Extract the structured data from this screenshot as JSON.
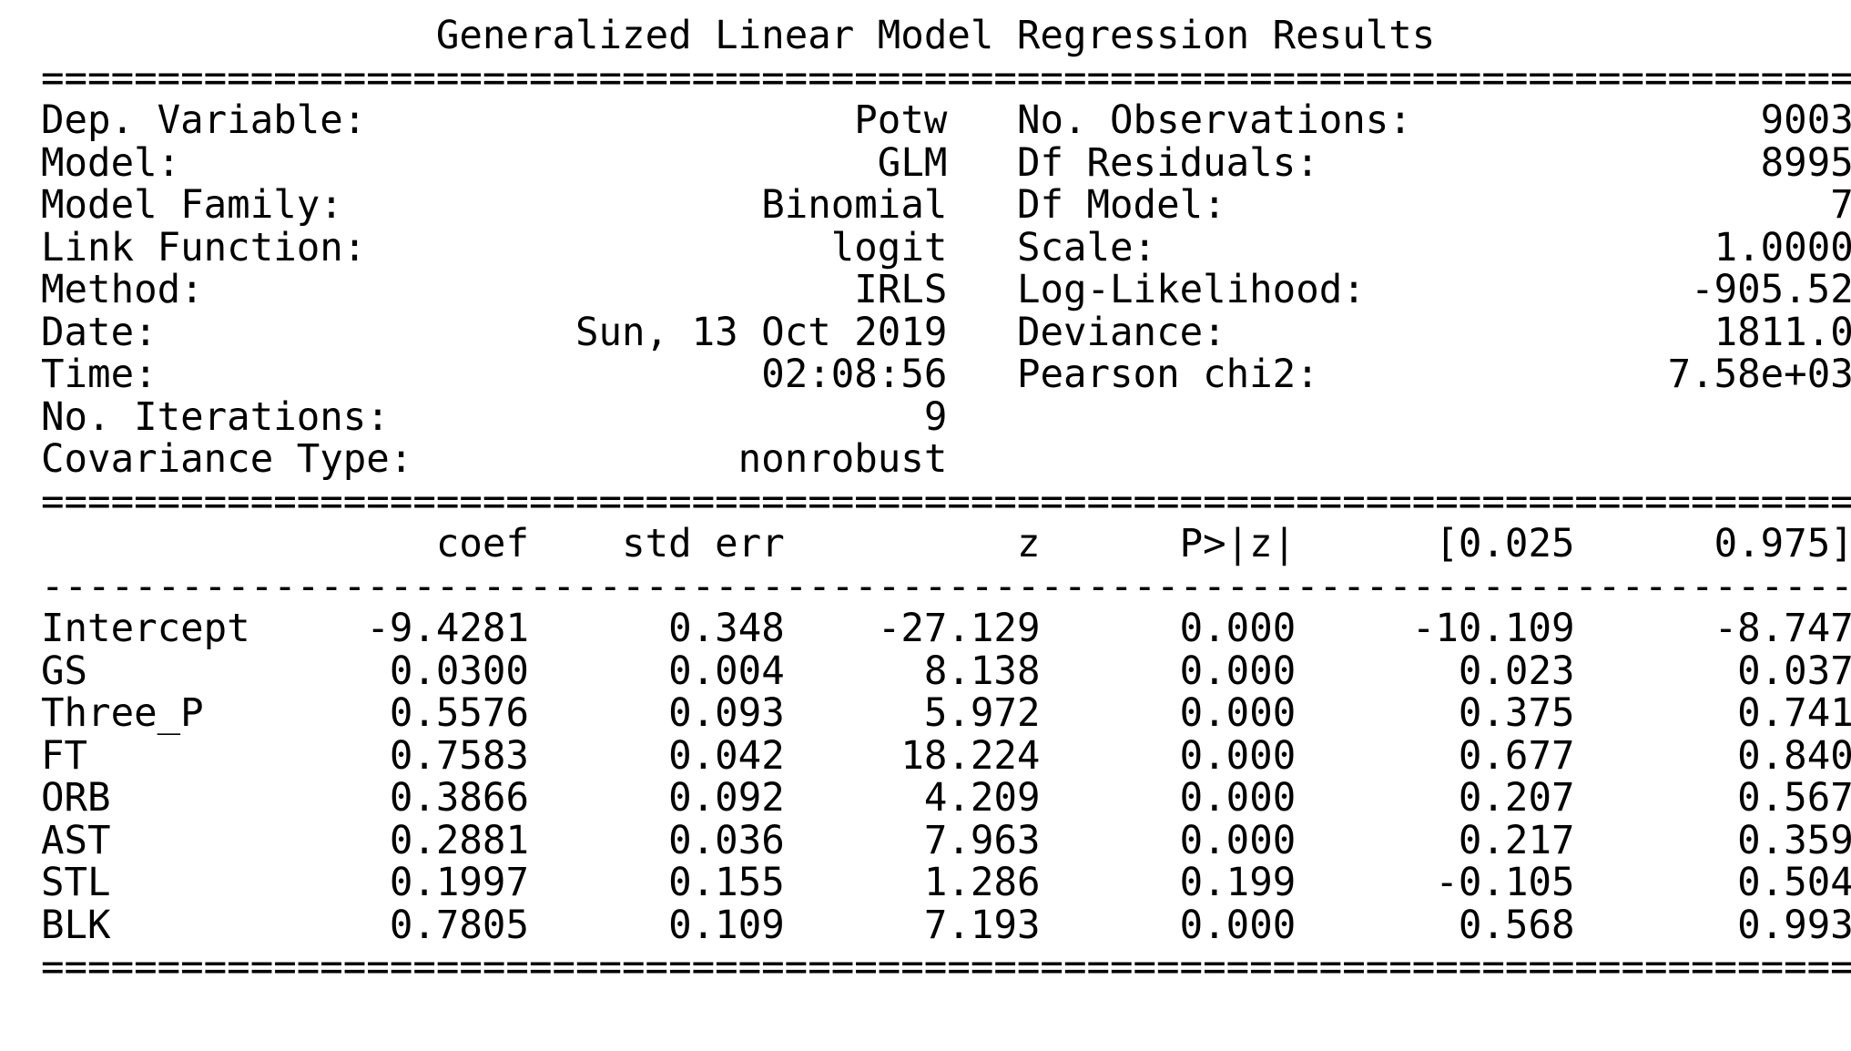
{
  "title": "Generalized Linear Model Regression Results",
  "line_width": 78,
  "rule_heavy_char": "=",
  "rule_light_char": "-",
  "header_left": [
    {
      "label": "Dep. Variable:",
      "value": "Potw"
    },
    {
      "label": "Model:",
      "value": "GLM"
    },
    {
      "label": "Model Family:",
      "value": "Binomial"
    },
    {
      "label": "Link Function:",
      "value": "logit"
    },
    {
      "label": "Method:",
      "value": "IRLS"
    },
    {
      "label": "Date:",
      "value": "Sun, 13 Oct 2019"
    },
    {
      "label": "Time:",
      "value": "02:08:56"
    },
    {
      "label": "No. Iterations:",
      "value": "9"
    },
    {
      "label": "Covariance Type:",
      "value": "nonrobust"
    }
  ],
  "header_right": [
    {
      "label": "No. Observations:",
      "value": "9003"
    },
    {
      "label": "Df Residuals:",
      "value": "8995"
    },
    {
      "label": "Df Model:",
      "value": "7"
    },
    {
      "label": "Scale:",
      "value": "1.0000"
    },
    {
      "label": "Log-Likelihood:",
      "value": "-905.52"
    },
    {
      "label": "Deviance:",
      "value": "1811.0"
    },
    {
      "label": "Pearson chi2:",
      "value": "7.58e+03"
    }
  ],
  "coef_table": {
    "columns": [
      "coef",
      "std err",
      "z",
      "P>|z|",
      "[0.025",
      "0.975]"
    ],
    "rows": [
      {
        "name": "Intercept",
        "values": [
          "-9.4281",
          "0.348",
          "-27.129",
          "0.000",
          "-10.109",
          "-8.747"
        ]
      },
      {
        "name": "GS",
        "values": [
          "0.0300",
          "0.004",
          "8.138",
          "0.000",
          "0.023",
          "0.037"
        ]
      },
      {
        "name": "Three_P",
        "values": [
          "0.5576",
          "0.093",
          "5.972",
          "0.000",
          "0.375",
          "0.741"
        ]
      },
      {
        "name": "FT",
        "values": [
          "0.7583",
          "0.042",
          "18.224",
          "0.000",
          "0.677",
          "0.840"
        ]
      },
      {
        "name": "ORB",
        "values": [
          "0.3866",
          "0.092",
          "4.209",
          "0.000",
          "0.207",
          "0.567"
        ]
      },
      {
        "name": "AST",
        "values": [
          "0.2881",
          "0.036",
          "7.963",
          "0.000",
          "0.217",
          "0.359"
        ]
      },
      {
        "name": "STL",
        "values": [
          "0.1997",
          "0.155",
          "1.286",
          "0.199",
          "-0.105",
          "0.504"
        ]
      },
      {
        "name": "BLK",
        "values": [
          "0.7805",
          "0.109",
          "7.193",
          "0.000",
          "0.568",
          "0.993"
        ]
      }
    ]
  }
}
